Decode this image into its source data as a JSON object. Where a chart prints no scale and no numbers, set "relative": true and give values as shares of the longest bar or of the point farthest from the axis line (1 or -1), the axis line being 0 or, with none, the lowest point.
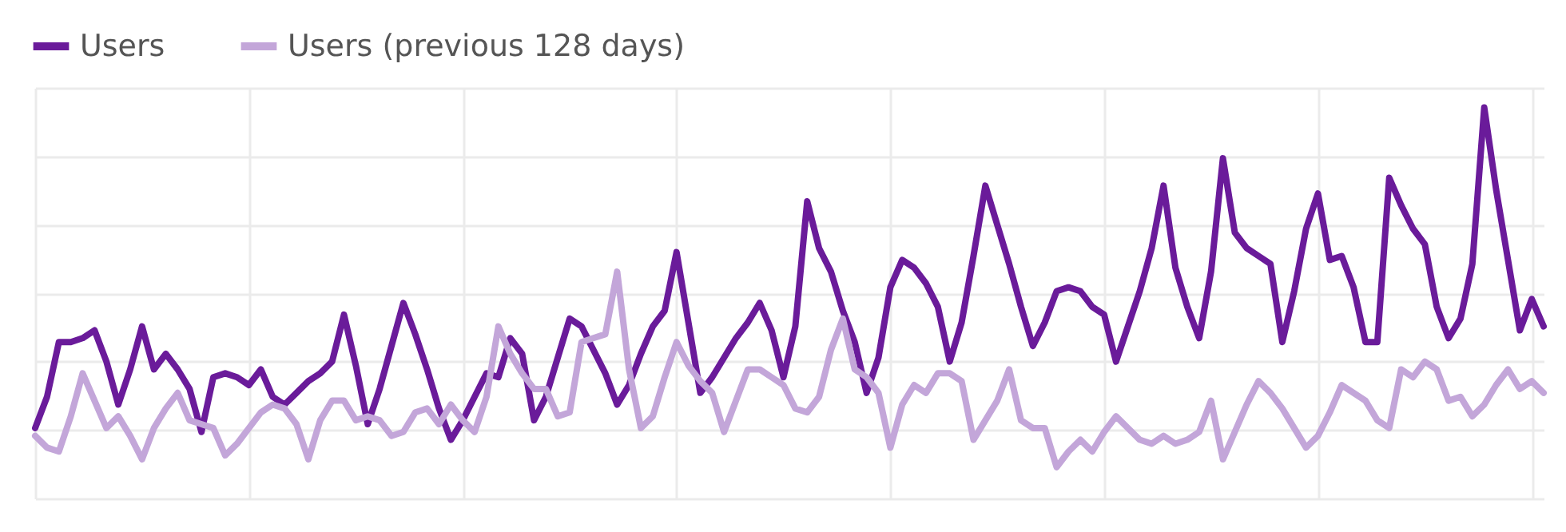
{
  "chart_data": {
    "type": "line",
    "relative": true,
    "grid": true,
    "legend": "top left",
    "line_style": "solid",
    "marker": "none",
    "categories": [
      null,
      null,
      null,
      null,
      null,
      null,
      null,
      null,
      null,
      null,
      null,
      null,
      null,
      null,
      null,
      null,
      null,
      null,
      null,
      null,
      null,
      null,
      null,
      null,
      null,
      null,
      null,
      null,
      null,
      null,
      null,
      null,
      null,
      null,
      null,
      null,
      null,
      null,
      null,
      null,
      null,
      null,
      null,
      null,
      null,
      null,
      null,
      null,
      null,
      null,
      null,
      null,
      null,
      null,
      null,
      null,
      null,
      null,
      null,
      null,
      null,
      null,
      null,
      null,
      null,
      null,
      null,
      null,
      null,
      null,
      null,
      null,
      null,
      null,
      null,
      null,
      null,
      null,
      null,
      null,
      null,
      null,
      null,
      null,
      null,
      null,
      null,
      null,
      null,
      null,
      null,
      null,
      null,
      null,
      null,
      null,
      null,
      null,
      null,
      null,
      null,
      null,
      null,
      null,
      null,
      null,
      null,
      null,
      null,
      null,
      null,
      null,
      null,
      null,
      null,
      null,
      null,
      null,
      null,
      null,
      null,
      null,
      null,
      null,
      null,
      null,
      null,
      null
    ],
    "series": [
      {
        "name": "Users",
        "color": "#6a1b9a",
        "values": [
          0.18,
          0.26,
          0.4,
          0.4,
          0.41,
          0.43,
          0.35,
          0.24,
          0.33,
          0.44,
          0.33,
          0.37,
          0.33,
          0.28,
          0.17,
          0.31,
          0.32,
          0.31,
          0.29,
          0.33,
          0.26,
          0.24,
          0.27,
          0.3,
          0.32,
          0.35,
          0.47,
          0.34,
          0.19,
          0.28,
          0.39,
          0.5,
          0.42,
          0.33,
          0.23,
          0.15,
          0.2,
          0.26,
          0.32,
          0.31,
          0.41,
          0.37,
          0.2,
          0.26,
          0.36,
          0.46,
          0.44,
          0.38,
          0.32,
          0.24,
          0.29,
          0.37,
          0.44,
          0.48,
          0.63,
          0.45,
          0.27,
          0.31,
          0.36,
          0.41,
          0.45,
          0.5,
          0.43,
          0.31,
          0.44,
          0.76,
          0.64,
          0.58,
          0.48,
          0.4,
          0.27,
          0.36,
          0.54,
          0.61,
          0.59,
          0.55,
          0.49,
          0.35,
          0.45,
          0.62,
          0.8,
          0.7,
          0.6,
          0.49,
          0.39,
          0.45,
          0.53,
          0.54,
          0.53,
          0.49,
          0.47,
          0.35,
          0.44,
          0.53,
          0.64,
          0.8,
          0.59,
          0.49,
          0.41,
          0.58,
          0.87,
          0.68,
          0.64,
          0.62,
          0.6,
          0.4,
          0.53,
          0.69,
          0.78,
          0.61,
          0.62,
          0.54,
          0.4,
          0.4,
          0.82,
          0.75,
          0.69,
          0.65,
          0.49,
          0.41,
          0.46,
          0.6,
          1.0,
          0.79,
          0.61,
          0.43,
          0.51,
          0.44
        ]
      },
      {
        "name": "Users (previous 128 days)",
        "color": "#c3a6d9",
        "values": [
          0.16,
          0.13,
          0.12,
          0.21,
          0.32,
          0.25,
          0.18,
          0.21,
          0.16,
          0.1,
          0.18,
          0.23,
          0.27,
          0.2,
          0.19,
          0.18,
          0.11,
          0.14,
          0.18,
          0.22,
          0.24,
          0.23,
          0.19,
          0.1,
          0.2,
          0.25,
          0.25,
          0.2,
          0.21,
          0.2,
          0.16,
          0.17,
          0.22,
          0.23,
          0.19,
          0.24,
          0.2,
          0.17,
          0.26,
          0.44,
          0.37,
          0.32,
          0.28,
          0.28,
          0.21,
          0.22,
          0.4,
          0.41,
          0.42,
          0.58,
          0.33,
          0.18,
          0.21,
          0.31,
          0.4,
          0.34,
          0.3,
          0.27,
          0.17,
          0.25,
          0.33,
          0.33,
          0.31,
          0.29,
          0.23,
          0.22,
          0.26,
          0.38,
          0.46,
          0.33,
          0.31,
          0.27,
          0.13,
          0.24,
          0.29,
          0.27,
          0.32,
          0.32,
          0.3,
          0.15,
          0.2,
          0.25,
          0.33,
          0.2,
          0.18,
          0.18,
          0.08,
          0.12,
          0.15,
          0.12,
          0.17,
          0.21,
          0.18,
          0.15,
          0.14,
          0.16,
          0.14,
          0.15,
          0.17,
          0.25,
          0.1,
          0.17,
          0.24,
          0.3,
          0.27,
          0.23,
          0.18,
          0.13,
          0.16,
          0.22,
          0.29,
          0.27,
          0.25,
          0.2,
          0.18,
          0.33,
          0.31,
          0.35,
          0.33,
          0.25,
          0.26,
          0.21,
          0.24,
          0.29,
          0.33,
          0.28,
          0.3,
          0.27
        ]
      }
    ]
  }
}
